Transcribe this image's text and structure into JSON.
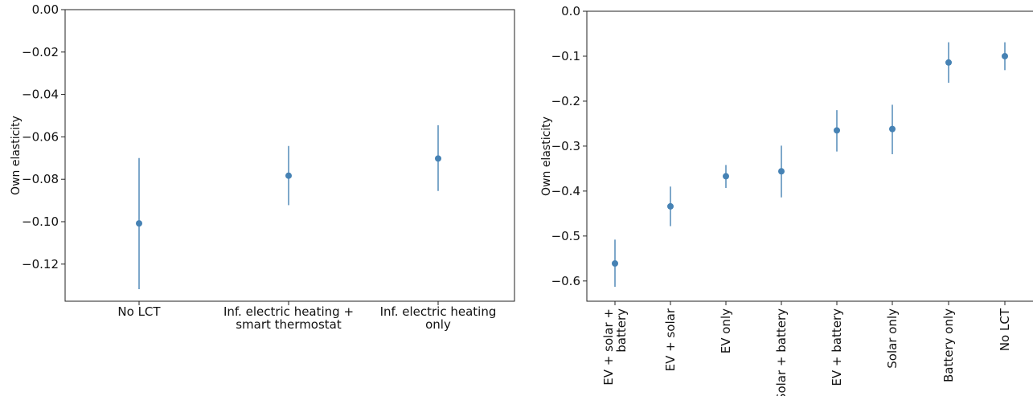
{
  "chart_data": [
    {
      "type": "scatter",
      "subtype": "point-with-errorbars",
      "ylabel": "Own elasticity",
      "xlabel": "",
      "ylim": [
        -0.1375,
        0.0
      ],
      "yticks": [
        "0.00",
        "−0.02",
        "−0.04",
        "−0.06",
        "−0.08",
        "−0.10",
        "−0.12"
      ],
      "ytick_values": [
        0.0,
        -0.02,
        -0.04,
        -0.06,
        -0.08,
        -0.1,
        -0.12
      ],
      "categories": [
        [
          "No LCT"
        ],
        [
          "Inf. electric heating +",
          "smart thermostat"
        ],
        [
          "Inf. electric heating",
          "only"
        ]
      ],
      "points": [
        {
          "value": -0.1008,
          "lower": -0.1318,
          "upper": -0.07
        },
        {
          "value": -0.0783,
          "lower": -0.0922,
          "upper": -0.0643
        },
        {
          "value": -0.0702,
          "lower": -0.0855,
          "upper": -0.0545
        }
      ],
      "color": "#4682b4",
      "grid": false,
      "legend": "none"
    },
    {
      "type": "scatter",
      "subtype": "point-with-errorbars",
      "ylabel": "Own elasticity",
      "xlabel": "",
      "ylim": [
        -0.645,
        0.0
      ],
      "yticks": [
        "0.0",
        "−0.1",
        "−0.2",
        "−0.3",
        "−0.4",
        "−0.5",
        "−0.6"
      ],
      "ytick_values": [
        0.0,
        -0.1,
        -0.2,
        -0.3,
        -0.4,
        -0.5,
        -0.6
      ],
      "categories": [
        "EV + solar + battery",
        "EV + solar",
        "EV only",
        "Solar + battery",
        "EV + battery",
        "Solar only",
        "Battery only",
        "No LCT"
      ],
      "category_lines": [
        [
          "EV + solar +",
          "battery"
        ],
        [
          "EV + solar"
        ],
        [
          "EV only"
        ],
        [
          "Solar + battery"
        ],
        [
          "EV + battery"
        ],
        [
          "Solar only"
        ],
        [
          "Battery only"
        ],
        [
          "No LCT"
        ]
      ],
      "points": [
        {
          "value": -0.561,
          "lower": -0.613,
          "upper": -0.508
        },
        {
          "value": -0.434,
          "lower": -0.478,
          "upper": -0.39
        },
        {
          "value": -0.367,
          "lower": -0.393,
          "upper": -0.342
        },
        {
          "value": -0.356,
          "lower": -0.414,
          "upper": -0.299
        },
        {
          "value": -0.265,
          "lower": -0.312,
          "upper": -0.22
        },
        {
          "value": -0.262,
          "lower": -0.318,
          "upper": -0.208
        },
        {
          "value": -0.114,
          "lower": -0.159,
          "upper": -0.069
        },
        {
          "value": -0.1,
          "lower": -0.131,
          "upper": -0.069
        }
      ],
      "color": "#4682b4",
      "grid": false,
      "legend": "none"
    }
  ]
}
